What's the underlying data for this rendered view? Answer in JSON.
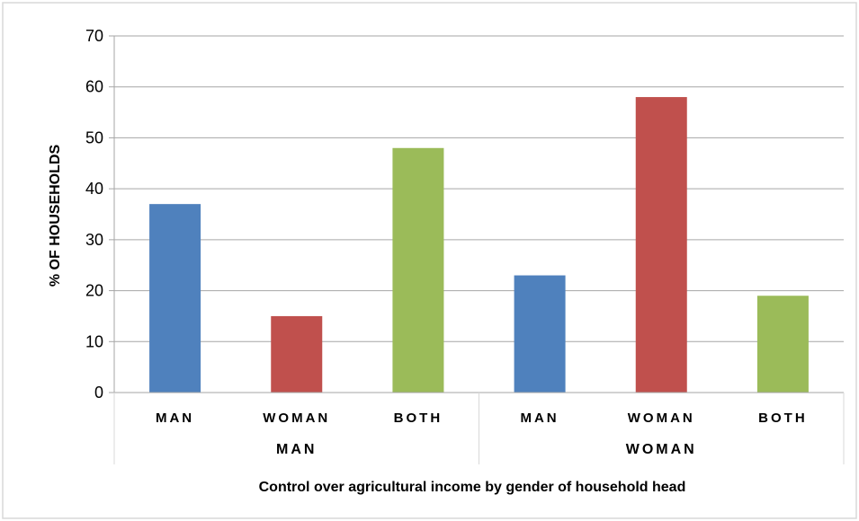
{
  "chart_data": {
    "type": "bar",
    "title": "",
    "xlabel": "Control over agricultural income by gender of household head",
    "ylabel": "% OF HOUSEHOLDS",
    "ylim": [
      0,
      70
    ],
    "yticks": [
      0,
      10,
      20,
      30,
      40,
      50,
      60,
      70
    ],
    "grid": true,
    "legend": "none",
    "groups": [
      "MAN",
      "WOMAN"
    ],
    "categories": [
      "MAN",
      "WOMAN",
      "BOTH",
      "MAN",
      "WOMAN",
      "BOTH"
    ],
    "values": [
      37,
      15,
      48,
      23,
      58,
      19
    ],
    "bar_colors": [
      "#4F81BD",
      "#C0504D",
      "#9BBB59",
      "#4F81BD",
      "#C0504D",
      "#9BBB59"
    ]
  },
  "colors": {
    "grid": "#A6A6A6",
    "frame": "#D9D9D9"
  }
}
